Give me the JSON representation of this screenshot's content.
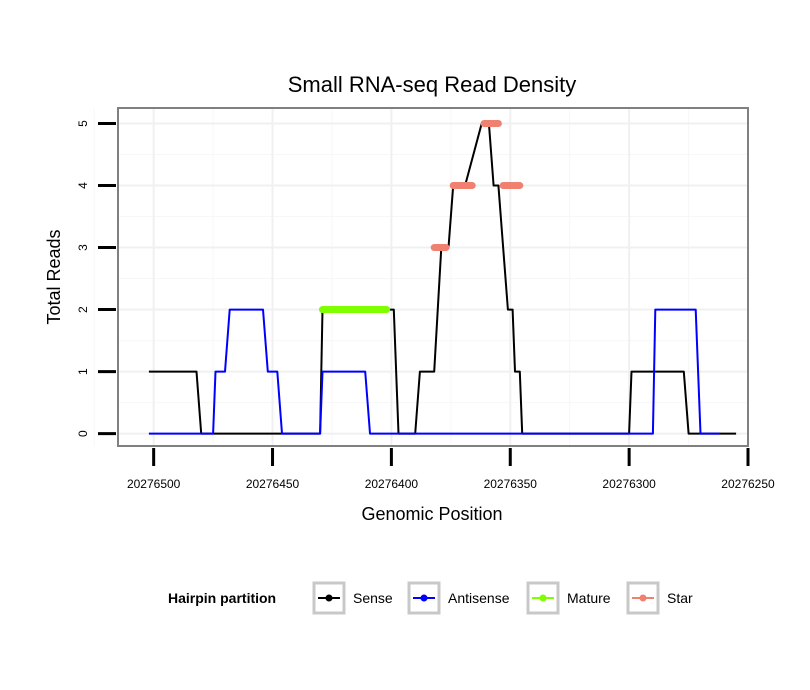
{
  "chart_data": {
    "type": "line",
    "title": "Small RNA-seq Read Density",
    "xlabel": "Genomic Position",
    "ylabel": "Total Reads",
    "x_reversed": true,
    "xlim": [
      20276515,
      20276250
    ],
    "ylim": [
      -0.2,
      5.25
    ],
    "x_ticks": [
      20276500,
      20276450,
      20276400,
      20276350,
      20276300,
      20276250
    ],
    "x_tick_labels": [
      "20276500",
      "20276450",
      "20276400",
      "20276350",
      "20276300",
      "20276250"
    ],
    "y_ticks": [
      0,
      1,
      2,
      3,
      4,
      5
    ],
    "y_tick_labels": [
      "0",
      "1",
      "2",
      "3",
      "4",
      "5"
    ],
    "grid": true,
    "legend_title": "Hairpin partition",
    "legend_position": "bottom",
    "colors": {
      "sense": "#000000",
      "antisense": "#0000ff",
      "mature": "#7fff00",
      "star": "#f08070"
    },
    "series": [
      {
        "key": "sense",
        "name": "Sense",
        "color": "#000000",
        "x": [
          20276502,
          20276482,
          20276480,
          20276430,
          20276429,
          20276399,
          20276397,
          20276390,
          20276388,
          20276382,
          20276379,
          20276376,
          20276374,
          20276369,
          20276362,
          20276359,
          20276357,
          20276355,
          20276351,
          20276349,
          20276348,
          20276346,
          20276345,
          20276344,
          20276343,
          20276341,
          20276340,
          20276300,
          20276299,
          20276277,
          20276275,
          20276255
        ],
        "y": [
          1,
          1,
          0,
          0,
          2,
          2,
          0,
          0,
          1,
          1,
          3,
          3,
          4,
          4,
          5,
          5,
          4,
          4,
          2,
          2,
          1,
          1,
          0,
          0,
          0,
          0,
          0,
          0,
          1,
          1,
          0,
          0
        ]
      },
      {
        "key": "antisense",
        "name": "Antisense",
        "color": "#0000ff",
        "x": [
          20276502,
          20276475,
          20276474,
          20276470,
          20276468,
          20276454,
          20276452,
          20276448,
          20276446,
          20276430,
          20276429,
          20276411,
          20276409,
          20276290,
          20276289,
          20276272,
          20276270,
          20276262
        ],
        "y": [
          0,
          0,
          1,
          1,
          2,
          2,
          1,
          1,
          0,
          0,
          1,
          1,
          0,
          0,
          2,
          2,
          0,
          0
        ]
      }
    ],
    "mature_segments": [
      {
        "x_start": 20276429,
        "x_end": 20276402,
        "y": 2
      }
    ],
    "star_segments": [
      {
        "x_start": 20276382,
        "x_end": 20276377,
        "y": 3
      },
      {
        "x_start": 20276374,
        "x_end": 20276366,
        "y": 4
      },
      {
        "x_start": 20276361,
        "x_end": 20276355,
        "y": 5
      },
      {
        "x_start": 20276353,
        "x_end": 20276346,
        "y": 4
      }
    ],
    "legend": [
      {
        "key": "sense",
        "label": "Sense"
      },
      {
        "key": "antisense",
        "label": "Antisense"
      },
      {
        "key": "mature",
        "label": "Mature"
      },
      {
        "key": "star",
        "label": "Star"
      }
    ]
  }
}
